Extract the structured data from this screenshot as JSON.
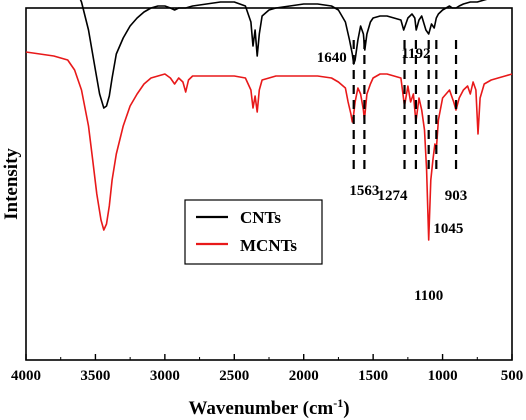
{
  "chart_data": {
    "type": "line",
    "xlabel": "Wavenumber (cm",
    "xlabel_sup": "-1",
    "xlabel_close": ")",
    "ylabel": "Intensity",
    "xlim": [
      4000,
      500
    ],
    "x_ticks": [
      4000,
      3500,
      3000,
      2500,
      2000,
      1500,
      1000,
      500
    ],
    "y_ticks_shown": false,
    "grid": false,
    "legend_position": "center-left",
    "series": [
      {
        "name": "CNTs",
        "color": "#000000",
        "x": [
          4000,
          3900,
          3800,
          3700,
          3650,
          3600,
          3550,
          3500,
          3470,
          3440,
          3420,
          3400,
          3380,
          3350,
          3300,
          3250,
          3200,
          3150,
          3100,
          3050,
          3000,
          2960,
          2930,
          2900,
          2850,
          2800,
          2700,
          2600,
          2500,
          2420,
          2380,
          2365,
          2350,
          2335,
          2320,
          2300,
          2250,
          2200,
          2100,
          2000,
          1900,
          1800,
          1750,
          1700,
          1670,
          1650,
          1640,
          1630,
          1610,
          1590,
          1570,
          1560,
          1545,
          1520,
          1500,
          1450,
          1400,
          1350,
          1300,
          1280,
          1250,
          1220,
          1200,
          1190,
          1170,
          1150,
          1120,
          1100,
          1080,
          1060,
          1045,
          1030,
          1000,
          950,
          930,
          903,
          880,
          850,
          800,
          750,
          700,
          650,
          600,
          550,
          500
        ],
        "y": [
          93,
          92,
          90,
          86,
          82,
          74,
          60,
          40,
          28,
          21,
          22,
          27,
          36,
          48,
          56,
          62,
          66,
          69,
          71,
          72,
          72,
          71,
          70,
          71,
          71,
          72,
          73,
          74,
          74,
          72,
          64,
          52,
          60,
          47,
          58,
          67,
          70,
          71,
          72,
          73,
          73,
          72,
          70,
          64,
          55,
          48,
          43,
          45,
          55,
          62,
          58,
          50,
          58,
          64,
          66,
          67,
          67,
          66,
          65,
          60,
          66,
          68,
          66,
          60,
          65,
          67,
          60,
          58,
          63,
          61,
          66,
          68,
          70,
          72,
          71,
          71,
          72,
          73,
          74,
          74,
          75,
          76,
          77,
          77,
          77
        ]
      },
      {
        "name": "MCNTs",
        "color": "#e8191a",
        "x": [
          4000,
          3900,
          3800,
          3700,
          3650,
          3600,
          3550,
          3520,
          3490,
          3460,
          3440,
          3420,
          3400,
          3380,
          3350,
          3300,
          3250,
          3200,
          3150,
          3100,
          3050,
          3000,
          2960,
          2930,
          2900,
          2870,
          2850,
          2830,
          2800,
          2700,
          2600,
          2500,
          2420,
          2380,
          2365,
          2350,
          2335,
          2320,
          2300,
          2250,
          2200,
          2100,
          2000,
          1900,
          1800,
          1750,
          1700,
          1680,
          1660,
          1650,
          1640,
          1630,
          1610,
          1590,
          1570,
          1563,
          1545,
          1520,
          1500,
          1450,
          1400,
          1350,
          1300,
          1274,
          1250,
          1230,
          1210,
          1192,
          1170,
          1150,
          1130,
          1115,
          1100,
          1085,
          1070,
          1055,
          1045,
          1030,
          1000,
          950,
          920,
          903,
          880,
          850,
          820,
          800,
          780,
          760,
          745,
          730,
          700,
          650,
          600,
          550,
          500
        ],
        "y": [
          49,
          48,
          47,
          45,
          40,
          30,
          12,
          -5,
          -22,
          -35,
          -40,
          -37,
          -28,
          -15,
          -2,
          12,
          22,
          28,
          33,
          36,
          37,
          38,
          36,
          33,
          36,
          34,
          29,
          35,
          37,
          37,
          37,
          37,
          36,
          30,
          21,
          27,
          19,
          30,
          35,
          36,
          37,
          37,
          37,
          37,
          36,
          34,
          31,
          24,
          18,
          14,
          18,
          24,
          31,
          28,
          20,
          15,
          28,
          33,
          36,
          38,
          38,
          37,
          36,
          22,
          32,
          24,
          28,
          14,
          26,
          20,
          10,
          -10,
          -45,
          -15,
          -5,
          3,
          0,
          15,
          26,
          30,
          24,
          20,
          26,
          30,
          32,
          28,
          34,
          30,
          8,
          26,
          33,
          35,
          36,
          37,
          38
        ]
      }
    ],
    "annotations": [
      {
        "label": "1640",
        "x": 1640
      },
      {
        "label": "1563",
        "x": 1563
      },
      {
        "label": "1274",
        "x": 1274
      },
      {
        "label": "1192",
        "x": 1192
      },
      {
        "label": "1100",
        "x": 1100
      },
      {
        "label": "1045",
        "x": 1045
      },
      {
        "label": "903",
        "x": 903
      }
    ]
  }
}
